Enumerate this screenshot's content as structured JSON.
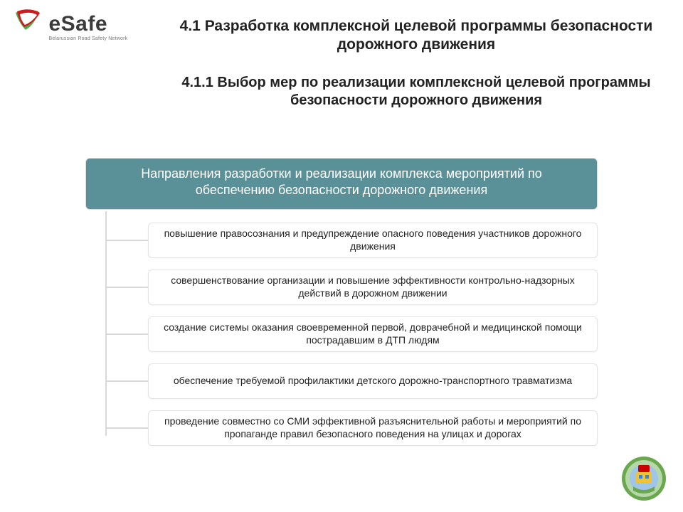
{
  "logo": {
    "brand": "eSafe",
    "subtitle": "Belarussian Road Safety Network",
    "colors": {
      "red": "#d01a1e",
      "green": "#2f9b2b",
      "text": "#3b3b3b"
    }
  },
  "title1": "4.1 Разработка комплексной целевой программы безопасности дорожного движения",
  "title2": "4.1.1 Выбор мер по реализации комплексной целевой программы безопасности дорожного движения",
  "diagram": {
    "header_bg": "#5a9198",
    "connector_color": "#d9d9d9",
    "item_border": "#e3e3e3",
    "header": "Направления разработки и реализации комплекса мероприятий по обеспечению безопасности дорожного движения",
    "items": [
      "повышение правосознания и предупреждение опасного поведения участников дорожного движения",
      "совершенствование организации и повышение эффективности контрольно-надзорных действий в дорожном движении",
      "создание системы оказания своевременной первой, доврачебной и медицинской помощи пострадавшим в ДТП людям",
      "обеспечение требуемой профилактики детского дорожно-транспортного травматизма",
      "проведение совместно со СМИ эффективной разъяснительной работы и мероприятий по пропаганде правил безопасного поведения на улицах и дорогах"
    ]
  },
  "badge_colors": {
    "outer": "#6aa84f",
    "mid": "#b6d7a8",
    "inner": "#9fc5e8",
    "red": "#cc0000",
    "yellow": "#f1c232",
    "blue": "#3d85c6"
  }
}
